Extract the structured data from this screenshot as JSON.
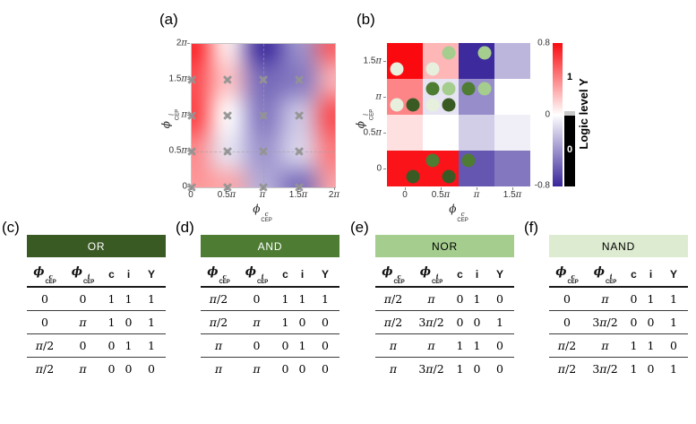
{
  "colors": {
    "red_max": "#fa0a0f",
    "blue_min": "#38269a",
    "marker_gray": "#949494",
    "colorbar_gap_gray": "#c8c8c8"
  },
  "gates": {
    "OR": {
      "header_color": "#3a5a24",
      "header_text": "#ffffff",
      "marker_color": "#3a5a24"
    },
    "AND": {
      "header_color": "#4e7c33",
      "header_text": "#ffffff",
      "marker_color": "#4e7c33"
    },
    "NOR": {
      "header_color": "#a5cd8e",
      "header_text": "#000000",
      "marker_color": "#a5cd8e"
    },
    "NAND": {
      "header_color": "#ddebd0",
      "header_text": "#000000",
      "marker_color": "#e7f0dd"
    }
  },
  "panel_a": {
    "label": "(a)",
    "xlabel": {
      "sym": "ϕ",
      "sup": "c",
      "sub": "CEP"
    },
    "ylabel": {
      "sym": "ϕ",
      "sup": "i",
      "sub": "CEP"
    }
  },
  "panel_b": {
    "label": "(b)",
    "xlabel": {
      "sym": "ϕ",
      "sup": "c",
      "sub": "CEP"
    },
    "ylabel": {
      "sym": "ϕ",
      "sup": "i",
      "sub": "CEP"
    }
  },
  "colorbar": {
    "tick_labels": [
      "0.8",
      "0",
      "-0.8"
    ],
    "logic_ticks": [
      "1",
      "0"
    ],
    "label": "Logic level Y",
    "value_range": [
      -0.8,
      0.8
    ]
  },
  "chart_data": [
    {
      "type": "heatmap",
      "panel": "a",
      "style": "continuous-interpolated",
      "xlabel": "ϕ^c_CEP",
      "ylabel": "ϕ^i_CEP",
      "x_ticks": [
        "0",
        "0.5π",
        "π",
        "1.5π",
        "2π"
      ],
      "y_ticks_top_to_bottom": [
        "2π",
        "1.5π",
        "π",
        "0.5π",
        "0"
      ],
      "x_range_pi": [
        0,
        2
      ],
      "y_range_pi": [
        0,
        2
      ],
      "value_range": [
        -0.8,
        0.8
      ],
      "grid_x_pi": [
        0,
        0.5,
        1,
        1.5,
        2
      ],
      "grid_y_pi_top_to_bottom": [
        2,
        1.5,
        1,
        0.5,
        0
      ],
      "values_top_to_bottom": [
        [
          0.75,
          0.05,
          -0.8,
          -0.4,
          0.55
        ],
        [
          0.6,
          0.2,
          -0.55,
          -0.5,
          0.25
        ],
        [
          0.65,
          0.0,
          -0.5,
          -0.2,
          0.6
        ],
        [
          0.4,
          -0.1,
          -0.4,
          -0.15,
          0.45
        ],
        [
          0.35,
          0.3,
          -0.3,
          -0.55,
          0.3
        ]
      ],
      "marker": "x",
      "marker_positions_pi": [
        [
          0,
          0
        ],
        [
          0.5,
          0
        ],
        [
          1,
          0
        ],
        [
          1.5,
          0
        ],
        [
          0,
          0.5
        ],
        [
          0.5,
          0.5
        ],
        [
          1,
          0.5
        ],
        [
          1.5,
          0.5
        ],
        [
          0,
          1
        ],
        [
          0.5,
          1
        ],
        [
          1,
          1
        ],
        [
          1.5,
          1
        ],
        [
          0,
          1.5
        ],
        [
          0.5,
          1.5
        ],
        [
          1,
          1.5
        ],
        [
          1.5,
          1.5
        ]
      ],
      "dashed_guides_pi": {
        "vertical_x": 1,
        "horizontal_y": 0.5
      }
    },
    {
      "type": "heatmap",
      "panel": "b",
      "style": "discrete-cells",
      "xlabel": "ϕ^c_CEP",
      "ylabel": "ϕ^i_CEP",
      "x_ticks": [
        "0",
        "0.5π",
        "π",
        "1.5π"
      ],
      "y_ticks_top_to_bottom": [
        "1.5π",
        "π",
        "0.5π",
        "0"
      ],
      "value_range": [
        -0.8,
        0.8
      ],
      "cells_top_to_bottom": [
        [
          0.8,
          0.24,
          -0.78,
          -0.27
        ],
        [
          0.4,
          -0.1,
          -0.42,
          0.0
        ],
        [
          0.1,
          0.0,
          -0.18,
          -0.06
        ],
        [
          0.77,
          0.77,
          -0.62,
          -0.5
        ]
      ],
      "gate_points_pi": [
        {
          "gate": "OR",
          "x": 0,
          "y": 0
        },
        {
          "gate": "OR",
          "x": 0.5,
          "y": 0
        },
        {
          "gate": "OR",
          "x": 0,
          "y": 1
        },
        {
          "gate": "OR",
          "x": 0.5,
          "y": 1
        },
        {
          "gate": "AND",
          "x": 0.5,
          "y": 0
        },
        {
          "gate": "AND",
          "x": 1,
          "y": 0
        },
        {
          "gate": "AND",
          "x": 0.5,
          "y": 1
        },
        {
          "gate": "AND",
          "x": 1,
          "y": 1
        },
        {
          "gate": "NOR",
          "x": 0.5,
          "y": 1
        },
        {
          "gate": "NOR",
          "x": 1,
          "y": 1
        },
        {
          "gate": "NOR",
          "x": 0.5,
          "y": 1.5
        },
        {
          "gate": "NOR",
          "x": 1,
          "y": 1.5
        },
        {
          "gate": "NAND",
          "x": 0,
          "y": 1
        },
        {
          "gate": "NAND",
          "x": 0.5,
          "y": 1
        },
        {
          "gate": "NAND",
          "x": 0,
          "y": 1.5
        },
        {
          "gate": "NAND",
          "x": 0.5,
          "y": 1.5
        }
      ]
    },
    {
      "type": "table",
      "panel": "(c)",
      "title": "OR",
      "gate": "OR",
      "columns": [
        "ϕc_CEP",
        "ϕi_CEP",
        "c",
        "i",
        "Y"
      ],
      "rows": [
        [
          "0",
          "0",
          "1",
          "1",
          "1"
        ],
        [
          "0",
          "π",
          "1",
          "0",
          "1"
        ],
        [
          "π/2",
          "0",
          "0",
          "1",
          "1"
        ],
        [
          "π/2",
          "π",
          "0",
          "0",
          "0"
        ]
      ]
    },
    {
      "type": "table",
      "panel": "(d)",
      "title": "AND",
      "gate": "AND",
      "columns": [
        "ϕc_CEP",
        "ϕi_CEP",
        "c",
        "i",
        "Y"
      ],
      "rows": [
        [
          "π/2",
          "0",
          "1",
          "1",
          "1"
        ],
        [
          "π/2",
          "π",
          "1",
          "0",
          "0"
        ],
        [
          "π",
          "0",
          "0",
          "1",
          "0"
        ],
        [
          "π",
          "π",
          "0",
          "0",
          "0"
        ]
      ]
    },
    {
      "type": "table",
      "panel": "(e)",
      "title": "NOR",
      "gate": "NOR",
      "columns": [
        "ϕc_CEP",
        "ϕi_CEP",
        "c",
        "i",
        "Y"
      ],
      "rows": [
        [
          "π/2",
          "π",
          "0",
          "1",
          "0"
        ],
        [
          "π/2",
          "3π/2",
          "0",
          "0",
          "1"
        ],
        [
          "π",
          "π",
          "1",
          "1",
          "0"
        ],
        [
          "π",
          "3π/2",
          "1",
          "0",
          "0"
        ]
      ]
    },
    {
      "type": "table",
      "panel": "(f)",
      "title": "NAND",
      "gate": "NAND",
      "columns": [
        "ϕc_CEP",
        "ϕi_CEP",
        "c",
        "i",
        "Y"
      ],
      "rows": [
        [
          "0",
          "π",
          "0",
          "1",
          "1"
        ],
        [
          "0",
          "3π/2",
          "0",
          "0",
          "1"
        ],
        [
          "π/2",
          "π",
          "1",
          "1",
          "0"
        ],
        [
          "π/2",
          "3π/2",
          "1",
          "0",
          "1"
        ]
      ]
    }
  ]
}
